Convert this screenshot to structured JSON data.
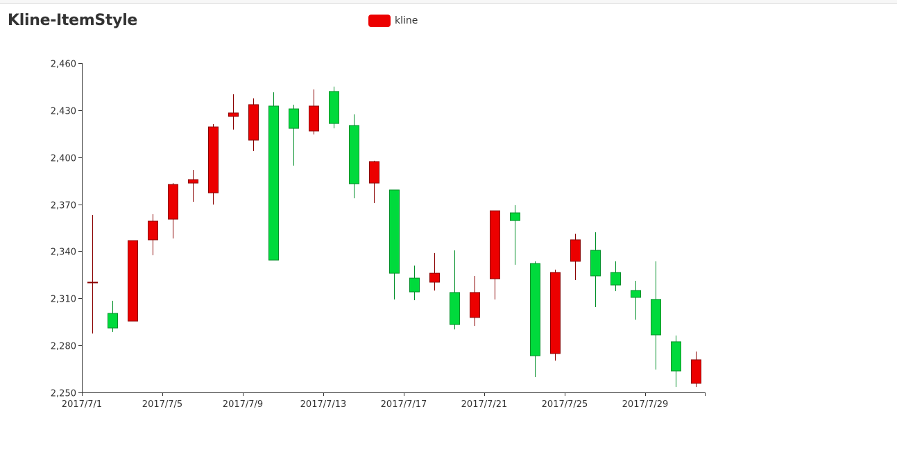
{
  "title": "Kline-ItemStyle",
  "legend": {
    "label": "kline",
    "color": "#ec0000"
  },
  "colors": {
    "up_fill": "#ec0000",
    "up_border": "#8a0000",
    "down_fill": "#00da3c",
    "down_border": "#008f28",
    "axis": "#333333"
  },
  "chart_data": {
    "type": "candlestick",
    "title": "Kline-ItemStyle",
    "legend": [
      "kline"
    ],
    "legend_position": "top-center",
    "xlabel": "",
    "ylabel": "",
    "ylim": [
      2250,
      2460
    ],
    "y_ticks": [
      2250,
      2280,
      2310,
      2340,
      2370,
      2400,
      2430,
      2460
    ],
    "y_tick_labels": [
      "2,250",
      "2,280",
      "2,310",
      "2,340",
      "2,370",
      "2,400",
      "2,430",
      "2,460"
    ],
    "x_tick_labels": [
      "2017/7/1",
      "2017/7/5",
      "2017/7/9",
      "2017/7/13",
      "2017/7/17",
      "2017/7/21",
      "2017/7/25",
      "2017/7/29"
    ],
    "grid": false,
    "categories": [
      "2017/7/1",
      "2017/7/2",
      "2017/7/3",
      "2017/7/4",
      "2017/7/5",
      "2017/7/6",
      "2017/7/7",
      "2017/7/8",
      "2017/7/9",
      "2017/7/10",
      "2017/7/11",
      "2017/7/12",
      "2017/7/13",
      "2017/7/14",
      "2017/7/15",
      "2017/7/16",
      "2017/7/17",
      "2017/7/18",
      "2017/7/19",
      "2017/7/20",
      "2017/7/21",
      "2017/7/22",
      "2017/7/23",
      "2017/7/24",
      "2017/7/25",
      "2017/7/26",
      "2017/7/27",
      "2017/7/28",
      "2017/7/29",
      "2017/7/30",
      "2017/7/31"
    ],
    "series": [
      {
        "name": "kline",
        "fields": [
          "open",
          "close",
          "low",
          "high"
        ],
        "values": [
          [
            2320.3,
            2320.3,
            2287.6,
            2363.2
          ],
          [
            2300.4,
            2291.1,
            2288.5,
            2308.4
          ],
          [
            2295.5,
            2346.8,
            2295.5,
            2346.8
          ],
          [
            2347.3,
            2359.2,
            2337.5,
            2363.6
          ],
          [
            2360.5,
            2382.6,
            2348.2,
            2383.5
          ],
          [
            2383.5,
            2385.7,
            2371.6,
            2391.9
          ],
          [
            2377.3,
            2419.3,
            2369.8,
            2421.1
          ],
          [
            2426.0,
            2428.2,
            2417.6,
            2440.1
          ],
          [
            2410.9,
            2433.5,
            2403.9,
            2437.5
          ],
          [
            2432.6,
            2334.4,
            2334.4,
            2441.4
          ],
          [
            2430.8,
            2418.4,
            2394.6,
            2433.5
          ],
          [
            2416.7,
            2432.6,
            2414.5,
            2443.2
          ],
          [
            2441.9,
            2421.5,
            2418.4,
            2445.0
          ],
          [
            2420.2,
            2383.1,
            2373.8,
            2427.3
          ],
          [
            2383.5,
            2397.2,
            2370.7,
            2397.7
          ],
          [
            2379.1,
            2326.0,
            2309.3,
            2379.1
          ],
          [
            2322.9,
            2314.1,
            2308.8,
            2330.9
          ],
          [
            2320.3,
            2326.0,
            2315.0,
            2338.9
          ],
          [
            2313.7,
            2293.3,
            2290.2,
            2340.6
          ],
          [
            2297.8,
            2313.7,
            2292.4,
            2324.3
          ],
          [
            2322.5,
            2365.8,
            2309.3,
            2365.8
          ],
          [
            2364.5,
            2359.6,
            2331.4,
            2369.4
          ],
          [
            2332.2,
            2273.4,
            2259.7,
            2333.6
          ],
          [
            2274.8,
            2326.5,
            2270.3,
            2328.3
          ],
          [
            2333.6,
            2347.3,
            2321.6,
            2351.2
          ],
          [
            2340.6,
            2324.3,
            2304.4,
            2352.1
          ],
          [
            2326.5,
            2318.5,
            2314.6,
            2333.6
          ],
          [
            2315.0,
            2310.6,
            2296.4,
            2321.2
          ],
          [
            2309.3,
            2286.7,
            2264.6,
            2333.6
          ],
          [
            2282.3,
            2263.7,
            2253.5,
            2286.3
          ],
          [
            2255.8,
            2270.8,
            2253.5,
            2276.1
          ]
        ]
      }
    ]
  }
}
